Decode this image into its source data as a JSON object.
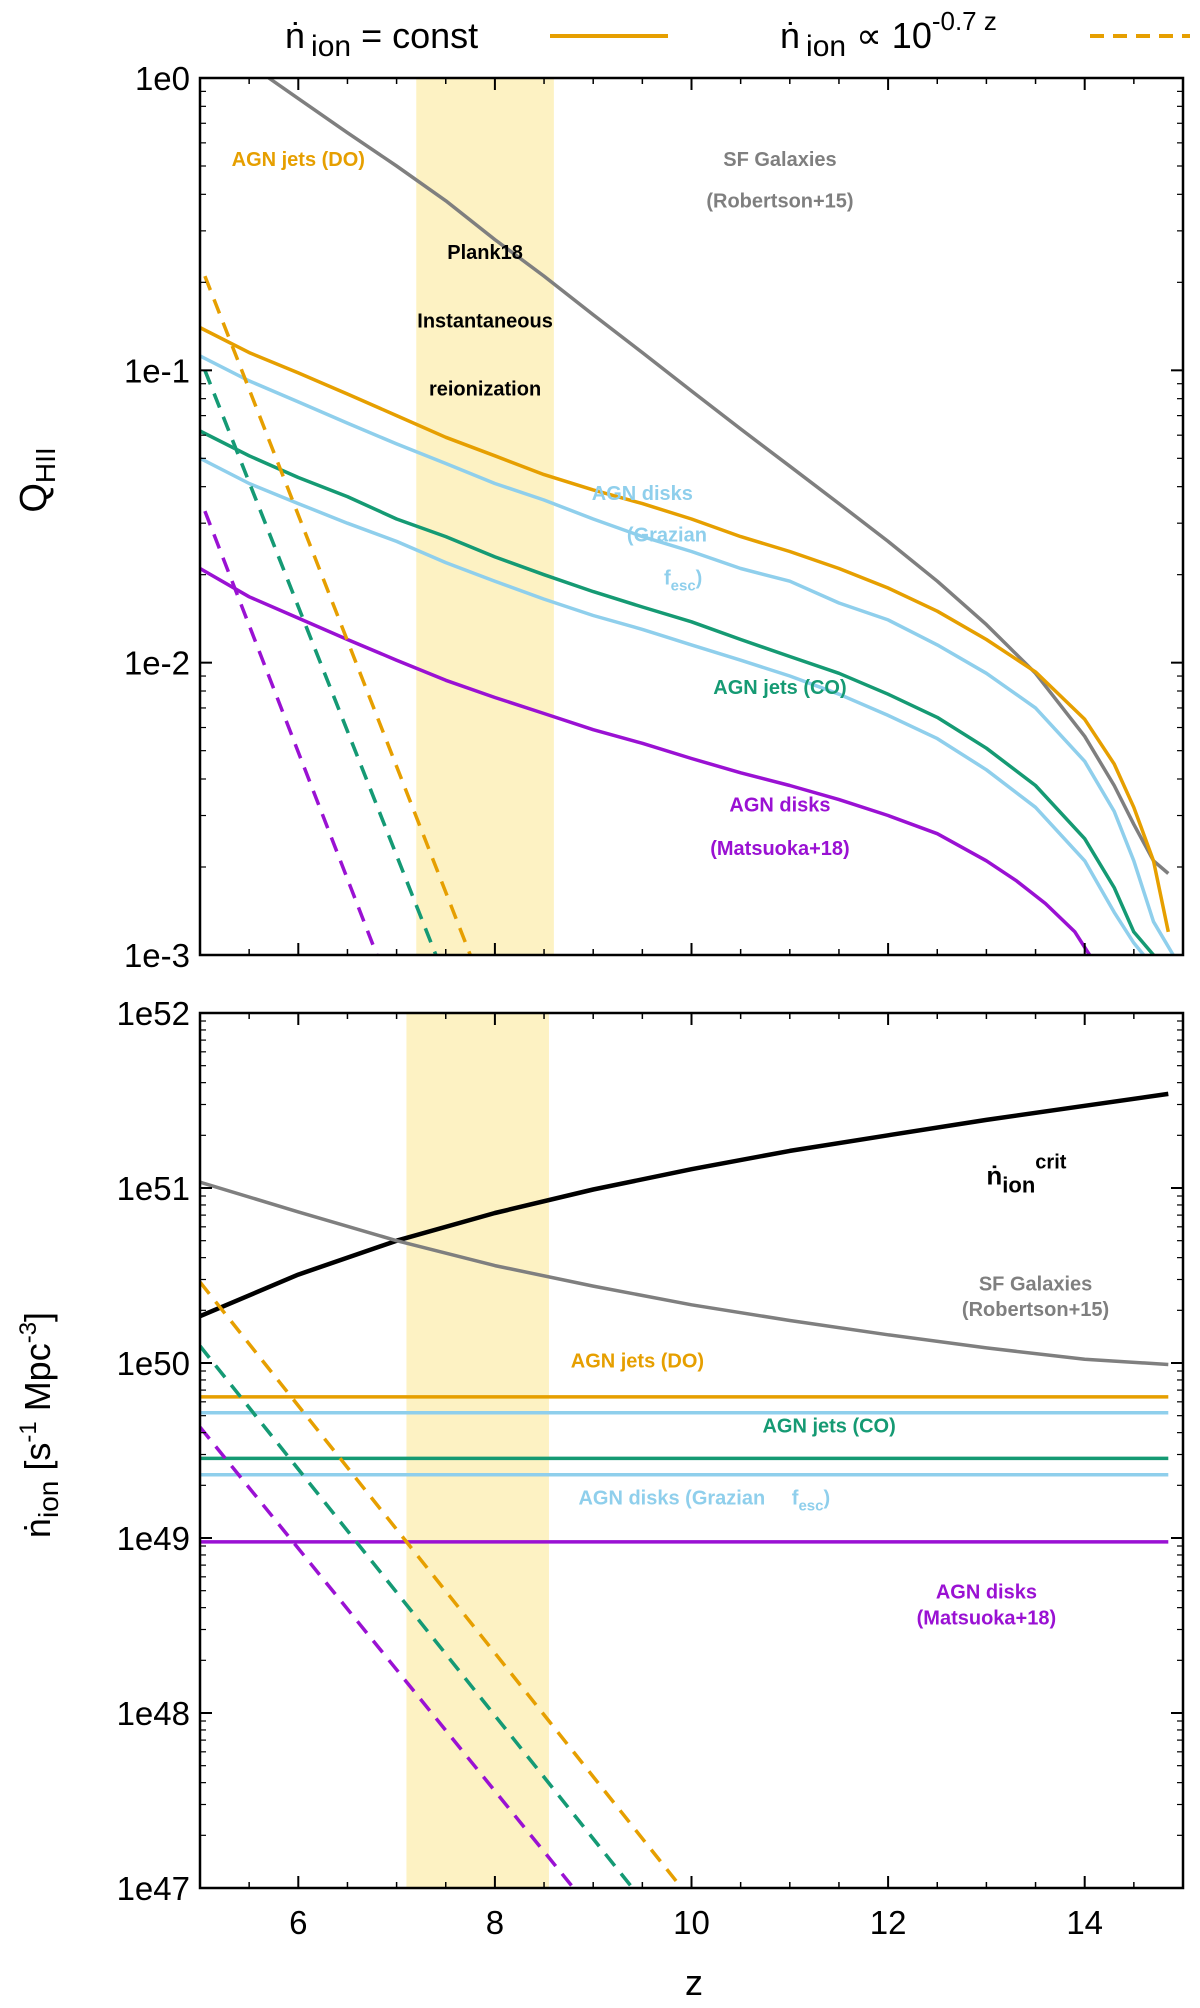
{
  "colors": {
    "orange": "#e69f00",
    "skyblue": "#8fcfec",
    "green": "#159a73",
    "purple": "#9a11d3",
    "gray": "#7f7f7f",
    "black": "#000000",
    "band": "#fdf2c3"
  },
  "legend": {
    "const_label": "ṅ ion = const",
    "const_main": "ṅ",
    "const_sub": "ion",
    "const_rest": " = const",
    "exp_main": "ṅ",
    "exp_sub": "ion",
    "exp_rest": " ∝ 10",
    "exp_sup": "-0.7 z"
  },
  "chart_data": [
    {
      "type": "line",
      "panel": "top",
      "ylabel_main": "Q",
      "ylabel_sub": "HII",
      "y_scale": "log",
      "xlim": [
        5,
        15
      ],
      "ylim": [
        0.001,
        1
      ],
      "x_ticks": [
        6,
        8,
        10,
        12,
        14
      ],
      "y_ticks": [
        0.001,
        0.01,
        0.1,
        1
      ],
      "y_tick_labels": [
        "1e-3",
        "1e-2",
        "1e-1",
        "1e0"
      ],
      "shaded_band": {
        "x": [
          7.2,
          8.6
        ]
      },
      "series": [
        {
          "name": "SF Galaxies (Robertson+15)",
          "color": "gray",
          "dash": false,
          "x": [
            5.7,
            6,
            6.5,
            7,
            7.5,
            8,
            8.5,
            9,
            9.5,
            10,
            10.5,
            11,
            11.5,
            12,
            12.5,
            13,
            13.5,
            14,
            14.3,
            14.5,
            14.7,
            14.85
          ],
          "y": [
            1.0,
            0.85,
            0.65,
            0.5,
            0.38,
            0.28,
            0.21,
            0.155,
            0.115,
            0.085,
            0.063,
            0.047,
            0.035,
            0.026,
            0.019,
            0.0135,
            0.0092,
            0.0056,
            0.0038,
            0.0028,
            0.0021,
            0.0019
          ]
        },
        {
          "name": "AGN jets (DO) const",
          "color": "orange",
          "dash": false,
          "x": [
            5,
            5.5,
            6,
            6.5,
            7,
            7.5,
            8,
            8.5,
            9,
            9.5,
            10,
            10.5,
            11,
            11.5,
            12,
            12.5,
            13,
            13.5,
            14,
            14.3,
            14.5,
            14.7,
            14.85
          ],
          "y": [
            0.14,
            0.115,
            0.098,
            0.083,
            0.07,
            0.059,
            0.051,
            0.044,
            0.039,
            0.035,
            0.031,
            0.027,
            0.024,
            0.021,
            0.018,
            0.015,
            0.012,
            0.0093,
            0.0064,
            0.0045,
            0.0032,
            0.0021,
            0.0012
          ]
        },
        {
          "name": "AGN disks (Grazian fesc) upper",
          "color": "skyblue",
          "dash": false,
          "x": [
            5,
            5.5,
            6,
            6.5,
            7,
            7.5,
            8,
            8.5,
            9,
            9.5,
            10,
            10.5,
            11,
            11.5,
            12,
            12.5,
            13,
            13.5,
            14,
            14.3,
            14.5,
            14.7,
            14.9
          ],
          "y": [
            0.112,
            0.092,
            0.078,
            0.066,
            0.056,
            0.048,
            0.041,
            0.036,
            0.031,
            0.027,
            0.024,
            0.021,
            0.019,
            0.016,
            0.014,
            0.0115,
            0.0092,
            0.007,
            0.0046,
            0.0031,
            0.0021,
            0.0013,
            0.001
          ]
        },
        {
          "name": "AGN jets (CO) const",
          "color": "green",
          "dash": false,
          "x": [
            5,
            5.5,
            6,
            6.5,
            7,
            7.5,
            8,
            8.5,
            9,
            9.5,
            10,
            10.5,
            11,
            11.5,
            12,
            12.5,
            13,
            13.5,
            14,
            14.3,
            14.5,
            14.7
          ],
          "y": [
            0.062,
            0.051,
            0.043,
            0.037,
            0.031,
            0.027,
            0.023,
            0.02,
            0.0175,
            0.0155,
            0.0138,
            0.012,
            0.0105,
            0.0092,
            0.0078,
            0.0065,
            0.0051,
            0.0038,
            0.0025,
            0.0017,
            0.0012,
            0.001
          ]
        },
        {
          "name": "AGN disks (Grazian fesc) lower",
          "color": "skyblue",
          "dash": false,
          "x": [
            5,
            5.5,
            6,
            6.5,
            7,
            7.5,
            8,
            8.5,
            9,
            9.5,
            10,
            10.5,
            11,
            11.5,
            12,
            12.5,
            13,
            13.5,
            14,
            14.3,
            14.5,
            14.6
          ],
          "y": [
            0.05,
            0.041,
            0.035,
            0.03,
            0.026,
            0.022,
            0.019,
            0.0165,
            0.0145,
            0.013,
            0.0115,
            0.0102,
            0.009,
            0.0078,
            0.0066,
            0.0055,
            0.0043,
            0.0032,
            0.0021,
            0.0014,
            0.0011,
            0.001
          ]
        },
        {
          "name": "AGN disks (Matsuoka+18) const",
          "color": "purple",
          "dash": false,
          "x": [
            5,
            5.5,
            6,
            6.5,
            7,
            7.5,
            8,
            8.5,
            9,
            9.5,
            10,
            10.5,
            11,
            11.5,
            12,
            12.5,
            13,
            13.3,
            13.6,
            13.9,
            14.05
          ],
          "y": [
            0.021,
            0.0168,
            0.0142,
            0.012,
            0.0102,
            0.0087,
            0.0076,
            0.0067,
            0.0059,
            0.0053,
            0.0047,
            0.0042,
            0.0038,
            0.0034,
            0.003,
            0.0026,
            0.0021,
            0.0018,
            0.0015,
            0.0012,
            0.001
          ]
        },
        {
          "name": "AGN jets (DO) decl",
          "color": "orange",
          "dash": true,
          "x": [
            5.05,
            7.75
          ],
          "y": [
            0.21,
            0.001
          ]
        },
        {
          "name": "AGN disks (Grazian) decl",
          "color": "skyblue",
          "dash": true,
          "x": [
            5.05,
            7.4
          ],
          "y": [
            0.1,
            0.001
          ]
        },
        {
          "name": "AGN jets (CO) decl",
          "color": "green",
          "dash": true,
          "x": [
            5.05,
            7.4
          ],
          "y": [
            0.1,
            0.001
          ]
        },
        {
          "name": "AGN disks (Matsuoka+18) decl",
          "color": "purple",
          "dash": true,
          "x": [
            5.05,
            6.8
          ],
          "y": [
            0.033,
            0.001
          ]
        }
      ],
      "annotations": [
        {
          "text": "AGN jets (DO)",
          "color": "orange",
          "x": 6.0,
          "y": 0.5
        },
        {
          "text": "SF Galaxies",
          "color": "gray",
          "x": 10.9,
          "y": 0.5
        },
        {
          "text": "(Robertson+15)",
          "color": "gray",
          "x": 10.9,
          "y": 0.36
        },
        {
          "text": "Plank18",
          "color": "black",
          "x": 7.9,
          "y": 0.24
        },
        {
          "text": "Instantaneous",
          "color": "black",
          "x": 7.9,
          "y": 0.14
        },
        {
          "text": "reionization",
          "color": "black",
          "x": 7.9,
          "y": 0.082
        },
        {
          "text": "AGN disks",
          "color": "skyblue",
          "x": 9.5,
          "y": 0.036
        },
        {
          "text": "(Grazian",
          "color": "skyblue",
          "x": 9.75,
          "y": 0.026
        },
        {
          "text": "AGN jets (CO)",
          "color": "green",
          "x": 10.9,
          "y": 0.0078
        },
        {
          "text": "AGN disks",
          "color": "purple",
          "x": 10.9,
          "y": 0.0031
        },
        {
          "text": "(Matsuoka+18)",
          "color": "purple",
          "x": 10.9,
          "y": 0.0022
        }
      ],
      "fesc_main": "f",
      "fesc_sub": "esc",
      "fesc_close": ")"
    },
    {
      "type": "line",
      "panel": "bottom",
      "xlabel": "z",
      "ylabel_main": "ṅ",
      "ylabel_sub": "ion",
      "ylabel_unit": " [s",
      "ylabel_unit_sup1": "-1",
      "ylabel_unit_mid": " Mpc",
      "ylabel_unit_sup2": "-3",
      "ylabel_unit_end": "]",
      "y_scale": "log",
      "xlim": [
        5,
        15
      ],
      "ylim": [
        1e+47,
        1e+52
      ],
      "x_ticks": [
        6,
        8,
        10,
        12,
        14
      ],
      "x_tick_labels": [
        "6",
        "8",
        "10",
        "12",
        "14"
      ],
      "y_ticks": [
        1e+47,
        1e+48,
        1e+49,
        1e+50,
        1e+51,
        1e+52
      ],
      "y_tick_labels": [
        "1e47",
        "1e48",
        "1e49",
        "1e50",
        "1e51",
        "1e52"
      ],
      "shaded_band": {
        "x": [
          7.1,
          8.55
        ]
      },
      "series": [
        {
          "name": "n_ion crit",
          "color": "black",
          "dash": false,
          "x": [
            5,
            6,
            7,
            8,
            9,
            10,
            11,
            12,
            13,
            14,
            14.85
          ],
          "y": [
            1.85e+50,
            3.2e+50,
            5e+50,
            7.2e+50,
            9.8e+50,
            1.28e+51,
            1.63e+51,
            2e+51,
            2.45e+51,
            2.95e+51,
            3.45e+51
          ]
        },
        {
          "name": "SF Galaxies (Robertson+15)",
          "color": "gray",
          "dash": false,
          "x": [
            5,
            6,
            7,
            8,
            9,
            10,
            11,
            12,
            13,
            14,
            14.85
          ],
          "y": [
            1.08e+51,
            7.3e+50,
            5e+50,
            3.6e+50,
            2.75e+50,
            2.15e+50,
            1.75e+50,
            1.45e+50,
            1.22e+50,
            1.05e+50,
            9.8e+49
          ]
        },
        {
          "name": "AGN jets (DO)",
          "color": "orange",
          "dash": false,
          "x": [
            5,
            14.85
          ],
          "y": [
            6.4e+49,
            6.4e+49
          ]
        },
        {
          "name": "AGN disks (Grazian fesc) upper",
          "color": "skyblue",
          "dash": false,
          "x": [
            5,
            14.85
          ],
          "y": [
            5.2e+49,
            5.2e+49
          ]
        },
        {
          "name": "AGN jets (CO)",
          "color": "green",
          "dash": false,
          "x": [
            5,
            14.85
          ],
          "y": [
            2.85e+49,
            2.85e+49
          ]
        },
        {
          "name": "AGN disks (Grazian fesc) lower",
          "color": "skyblue",
          "dash": false,
          "x": [
            5,
            14.85
          ],
          "y": [
            2.3e+49,
            2.3e+49
          ]
        },
        {
          "name": "AGN disks (Matsuoka+18)",
          "color": "purple",
          "dash": false,
          "x": [
            5,
            14.85
          ],
          "y": [
            9.5e+48,
            9.5e+48
          ]
        },
        {
          "name": "AGN jets (DO) decl",
          "color": "orange",
          "dash": true,
          "x": [
            5,
            9.9
          ],
          "y": [
            2.9e+50,
            1e+47
          ]
        },
        {
          "name": "AGN disks (Grazian) decl",
          "color": "skyblue",
          "dash": true,
          "x": [
            5,
            9.4
          ],
          "y": [
            1.25e+50,
            1e+47
          ]
        },
        {
          "name": "AGN jets (CO) decl",
          "color": "green",
          "dash": true,
          "x": [
            5,
            9.4
          ],
          "y": [
            1.25e+50,
            1e+47
          ]
        },
        {
          "name": "AGN disks (Matsuoka+18) decl",
          "color": "purple",
          "dash": true,
          "x": [
            5,
            8.8
          ],
          "y": [
            4.3e+49,
            1e+47
          ]
        }
      ],
      "annotations": [
        {
          "text": "SF Galaxies",
          "color": "gray",
          "x": 13.5,
          "y": 2.6e+50
        },
        {
          "text": "(Robertson+15)",
          "color": "gray",
          "x": 13.5,
          "y": 1.85e+50
        },
        {
          "text": "AGN jets (DO)",
          "color": "orange",
          "x": 9.45,
          "y": 9.4e+49
        },
        {
          "text": "AGN jets (CO)",
          "color": "green",
          "x": 11.4,
          "y": 4e+49
        },
        {
          "text": "AGN disks (Grazian",
          "color": "skyblue",
          "x": 9.8,
          "y": 1.55e+49
        },
        {
          "text": "AGN disks",
          "color": "purple",
          "x": 13.0,
          "y": 4.5e+48
        },
        {
          "text": "(Matsuoka+18)",
          "color": "purple",
          "x": 13.0,
          "y": 3.2e+48
        }
      ],
      "crit_main": "ṅ",
      "crit_sub": "ion",
      "crit_sup": "crit",
      "fesc_main": "f",
      "fesc_sub": "esc",
      "fesc_close": ")"
    }
  ]
}
